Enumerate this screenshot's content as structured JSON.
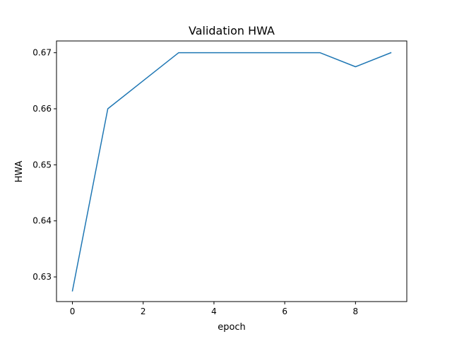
{
  "chart_data": {
    "type": "line",
    "title": "Validation HWA",
    "xlabel": "epoch",
    "ylabel": "HWA",
    "xlim": [
      -0.45,
      9.45
    ],
    "ylim": [
      0.6256,
      0.6721
    ],
    "x_ticks": [
      0,
      2,
      4,
      6,
      8
    ],
    "x_tick_labels": [
      "0",
      "2",
      "4",
      "6",
      "8"
    ],
    "y_ticks": [
      0.63,
      0.64,
      0.65,
      0.66,
      0.67
    ],
    "y_tick_labels": [
      "0.63",
      "0.64",
      "0.65",
      "0.66",
      "0.67"
    ],
    "grid": false,
    "legend": "none",
    "series": [
      {
        "color": "#1f77b4",
        "x": [
          0,
          1,
          2,
          3,
          4,
          5,
          6,
          7,
          8,
          9
        ],
        "y": [
          0.6275,
          0.66,
          0.665,
          0.67,
          0.67,
          0.67,
          0.67,
          0.67,
          0.6675,
          0.67
        ]
      }
    ]
  }
}
